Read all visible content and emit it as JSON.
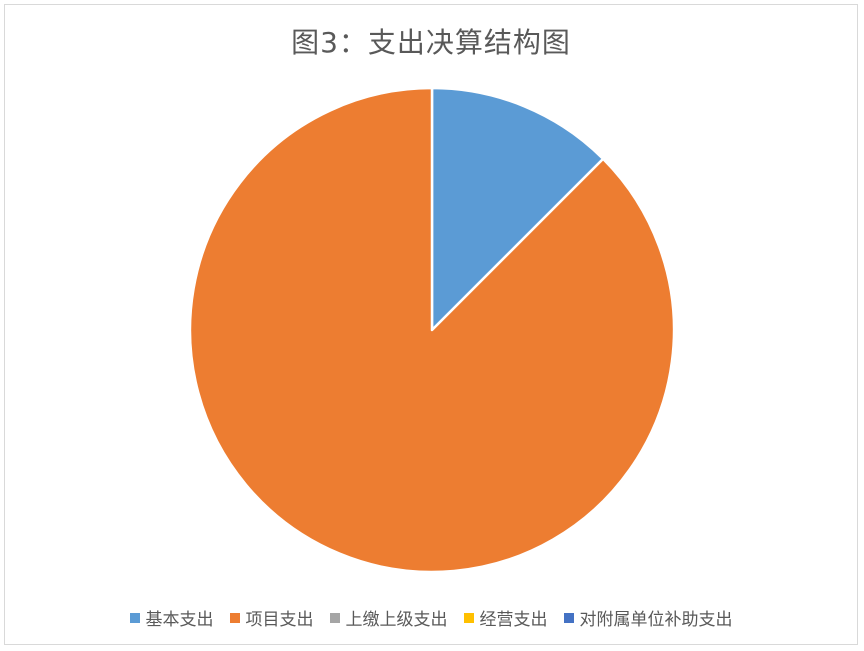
{
  "chart_data": {
    "type": "pie",
    "title": "图3：支出决算结构图",
    "categories": [
      "基本支出",
      "项目支出",
      "上缴上级支出",
      "经营支出",
      "对附属单位补助支出"
    ],
    "values": [
      12.5,
      87.5,
      0,
      0,
      0
    ],
    "colors": [
      "#5b9bd5",
      "#ed7d31",
      "#a5a5a5",
      "#ffc000",
      "#4472c4"
    ],
    "legend_position": "bottom"
  }
}
